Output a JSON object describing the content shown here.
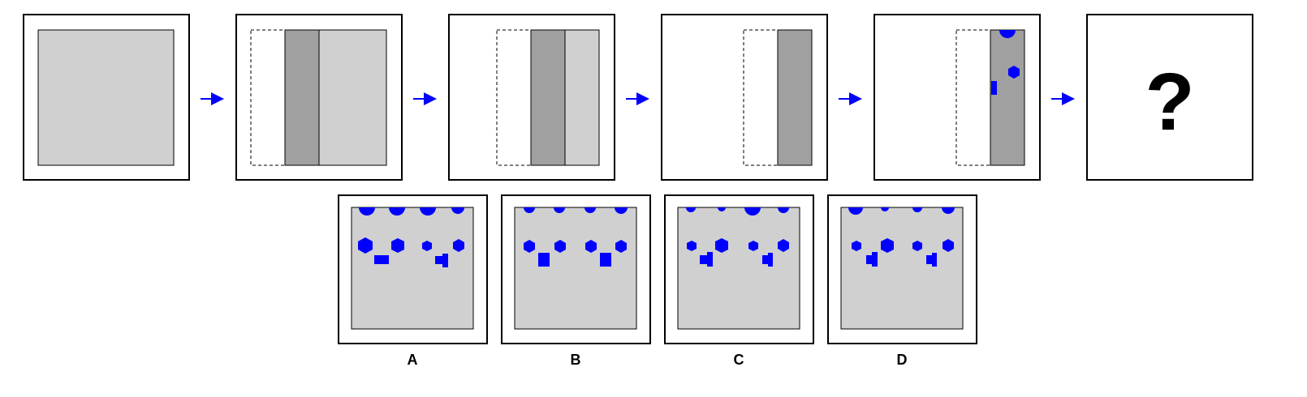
{
  "puzzle": {
    "question_mark": "?",
    "sequence": [
      {
        "step": 1,
        "state": "full-sheet"
      },
      {
        "step": 2,
        "state": "folded-left-third"
      },
      {
        "step": 3,
        "state": "folded-again"
      },
      {
        "step": 4,
        "state": "folded-to-narrow-strip"
      },
      {
        "step": 5,
        "state": "strip-with-holes-punched",
        "holes": [
          "semicircle-top",
          "hexagon",
          "rectangle-left-edge"
        ]
      },
      {
        "step": 6,
        "state": "unknown"
      }
    ],
    "options": [
      {
        "label": "A"
      },
      {
        "label": "B"
      },
      {
        "label": "C"
      },
      {
        "label": "D"
      }
    ]
  },
  "colors": {
    "paper": "#d0d0d0",
    "folded_layer": "#a0a0a0",
    "hole": "#0000ff",
    "arrow": "#0000ff",
    "frame": "#000000",
    "background": "#ffffff"
  }
}
